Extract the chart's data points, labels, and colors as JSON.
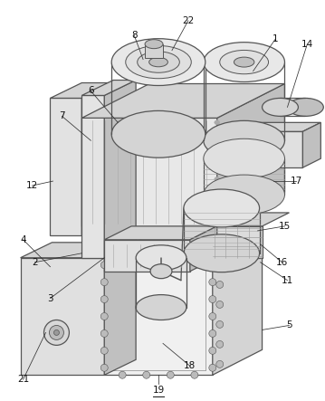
{
  "bg_color": "#ffffff",
  "lc": "#555555",
  "lw": 0.9,
  "face_light": "#e8e8e8",
  "face_mid": "#d4d4d4",
  "face_dark": "#c0c0c0",
  "face_darkest": "#aaaaaa",
  "font_size": 7.5
}
